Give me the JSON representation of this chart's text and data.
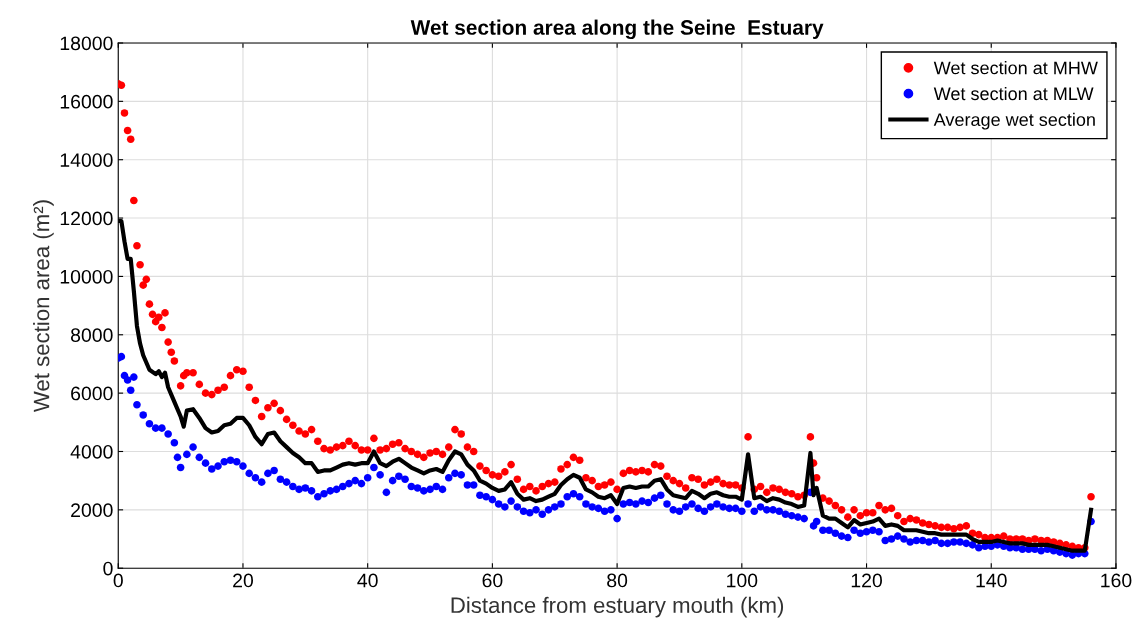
{
  "chart_data": {
    "type": "scatter",
    "title": "Wet section area along the Seine  Estuary",
    "xlabel": "Distance from estuary mouth (km)",
    "ylabel": "Wet section area (m²)",
    "xlim": [
      0,
      160
    ],
    "xticks": [
      0,
      20,
      40,
      60,
      80,
      100,
      120,
      140,
      160
    ],
    "ylim": [
      0,
      18000
    ],
    "yticks": [
      0,
      2000,
      4000,
      6000,
      8000,
      10000,
      12000,
      14000,
      16000,
      18000
    ],
    "grid": true,
    "legend": "top right",
    "series": [
      {
        "name": "Wet section at MHW",
        "marker": "circle",
        "color": "#ff0000",
        "x": [
          0,
          0.5,
          1,
          1.5,
          2,
          2.5,
          3,
          3.5,
          4,
          4.5,
          5,
          5.5,
          6,
          6.5,
          7,
          7.5,
          8,
          8.5,
          9,
          10,
          10.5,
          11,
          12,
          13,
          14,
          15,
          16,
          17,
          18,
          19,
          20,
          21,
          22,
          23,
          24,
          25,
          26,
          27,
          28,
          29,
          30,
          31,
          32,
          33,
          34,
          35,
          36,
          37,
          38,
          39,
          40,
          41,
          42,
          43,
          44,
          45,
          46,
          47,
          48,
          49,
          50,
          51,
          52,
          53,
          54,
          55,
          56,
          57,
          58,
          59,
          60,
          61,
          62,
          63,
          64,
          65,
          66,
          67,
          68,
          69,
          70,
          71,
          72,
          73,
          74,
          75,
          76,
          77,
          78,
          79,
          80,
          81,
          82,
          83,
          84,
          85,
          86,
          87,
          88,
          89,
          90,
          91,
          92,
          93,
          94,
          95,
          96,
          97,
          98,
          99,
          100,
          101,
          102,
          103,
          104,
          105,
          106,
          107,
          108,
          109,
          110,
          111,
          111.5,
          112,
          113,
          114,
          115,
          116,
          117,
          118,
          119,
          120,
          121,
          122,
          123,
          124,
          125,
          126,
          127,
          128,
          129,
          130,
          131,
          132,
          133,
          134,
          135,
          136,
          137,
          138,
          139,
          140,
          141,
          142,
          143,
          144,
          145,
          146,
          147,
          148,
          149,
          150,
          151,
          152,
          153,
          154,
          155,
          156
        ],
        "values": [
          16600,
          16550,
          15600,
          15000,
          14700,
          12600,
          11050,
          10400,
          9700,
          9900,
          9050,
          8700,
          8450,
          8600,
          8250,
          8750,
          7750,
          7400,
          7100,
          6250,
          6600,
          6700,
          6700,
          6300,
          6000,
          5950,
          6100,
          6200,
          6600,
          6800,
          6750,
          6200,
          5750,
          5200,
          5500,
          5650,
          5400,
          5100,
          4900,
          4700,
          4600,
          4750,
          4350,
          4100,
          4050,
          4150,
          4200,
          4350,
          4200,
          4050,
          4050,
          4450,
          4050,
          4100,
          4250,
          4300,
          4100,
          4000,
          3900,
          3800,
          3950,
          4000,
          3900,
          4150,
          4750,
          4600,
          4150,
          4000,
          3500,
          3350,
          3200,
          3150,
          3300,
          3550,
          3050,
          2700,
          2800,
          2650,
          2800,
          2900,
          2950,
          3400,
          3550,
          3800,
          3700,
          3100,
          3000,
          2800,
          2850,
          2950,
          2700,
          3250,
          3350,
          3300,
          3350,
          3300,
          3550,
          3500,
          3150,
          3000,
          2900,
          2750,
          3100,
          3050,
          2850,
          2950,
          3050,
          2900,
          2850,
          2850,
          2750,
          4500,
          2700,
          2800,
          2600,
          2750,
          2700,
          2600,
          2550,
          2450,
          2500,
          4500,
          3600,
          3100,
          2400,
          2300,
          2150,
          2000,
          1750,
          2000,
          1800,
          1900,
          1900,
          2150,
          2000,
          2050,
          1800,
          1600,
          1700,
          1650,
          1550,
          1500,
          1450,
          1400,
          1400,
          1350,
          1400,
          1450,
          1200,
          1150,
          1050,
          1050,
          1050,
          1100,
          1000,
          1000,
          1000,
          950,
          1000,
          950,
          950,
          900,
          850,
          800,
          750,
          700,
          700,
          2450
        ]
      },
      {
        "name": "Wet section at MLW",
        "marker": "circle",
        "color": "#0000ff",
        "x": [
          0,
          0.5,
          1,
          1.5,
          2,
          2.5,
          3,
          4,
          5,
          6,
          7,
          8,
          9,
          9.5,
          10,
          11,
          12,
          13,
          14,
          15,
          16,
          17,
          18,
          19,
          20,
          21,
          22,
          23,
          24,
          25,
          26,
          27,
          28,
          29,
          30,
          31,
          32,
          33,
          34,
          35,
          36,
          37,
          38,
          39,
          40,
          41,
          42,
          43,
          44,
          45,
          46,
          47,
          48,
          49,
          50,
          51,
          52,
          53,
          54,
          55,
          56,
          57,
          58,
          59,
          60,
          61,
          62,
          63,
          64,
          65,
          66,
          67,
          68,
          69,
          70,
          71,
          72,
          73,
          74,
          75,
          76,
          77,
          78,
          79,
          80,
          81,
          82,
          83,
          84,
          85,
          86,
          87,
          88,
          89,
          90,
          91,
          92,
          93,
          94,
          95,
          96,
          97,
          98,
          99,
          100,
          101,
          102,
          103,
          104,
          105,
          106,
          107,
          108,
          109,
          110,
          111,
          111.5,
          112,
          113,
          114,
          115,
          116,
          117,
          118,
          119,
          120,
          121,
          122,
          123,
          124,
          125,
          126,
          127,
          128,
          129,
          130,
          131,
          132,
          133,
          134,
          135,
          136,
          137,
          138,
          139,
          140,
          141,
          142,
          143,
          144,
          145,
          146,
          147,
          148,
          149,
          150,
          151,
          152,
          153,
          154,
          155,
          156
        ],
        "values": [
          7200,
          7250,
          6600,
          6450,
          6100,
          6550,
          5600,
          5250,
          4950,
          4800,
          4800,
          4600,
          4300,
          3800,
          3450,
          3900,
          4150,
          3800,
          3600,
          3400,
          3500,
          3650,
          3700,
          3650,
          3500,
          3250,
          3100,
          2950,
          3250,
          3350,
          3050,
          2950,
          2800,
          2700,
          2750,
          2650,
          2450,
          2550,
          2650,
          2700,
          2800,
          2900,
          3000,
          2900,
          3100,
          3450,
          3200,
          2600,
          3000,
          3150,
          3050,
          2800,
          2750,
          2650,
          2700,
          2800,
          2700,
          3100,
          3250,
          3200,
          2850,
          2850,
          2500,
          2450,
          2350,
          2200,
          2100,
          2300,
          2100,
          1950,
          1900,
          2000,
          1850,
          2000,
          2100,
          2200,
          2450,
          2550,
          2450,
          2200,
          2100,
          2050,
          1950,
          2000,
          1700,
          2200,
          2250,
          2200,
          2300,
          2250,
          2400,
          2500,
          2200,
          2000,
          1950,
          2100,
          2200,
          2050,
          1950,
          2100,
          2200,
          2100,
          2050,
          2050,
          1950,
          2200,
          1950,
          2100,
          2000,
          2000,
          1950,
          1850,
          1800,
          1750,
          1700,
          2600,
          1450,
          1600,
          1300,
          1300,
          1200,
          1100,
          1050,
          1300,
          1200,
          1250,
          1300,
          1250,
          950,
          1000,
          1100,
          1000,
          900,
          950,
          950,
          900,
          950,
          850,
          850,
          900,
          900,
          850,
          800,
          700,
          750,
          750,
          800,
          750,
          700,
          700,
          650,
          650,
          650,
          600,
          650,
          600,
          550,
          500,
          450,
          500,
          500,
          1600
        ]
      },
      {
        "name": "Average wet section",
        "type": "line",
        "color": "#000000",
        "x": [
          0,
          0.5,
          1,
          1.5,
          2,
          2.5,
          3,
          3.5,
          4,
          5,
          6,
          6.5,
          7,
          7.5,
          8,
          9,
          10,
          10.5,
          11,
          12,
          13,
          14,
          15,
          16,
          17,
          18,
          19,
          20,
          21,
          22,
          23,
          24,
          25,
          26,
          27,
          28,
          29,
          30,
          31,
          32,
          33,
          34,
          35,
          36,
          37,
          38,
          39,
          40,
          41,
          42,
          43,
          44,
          45,
          46,
          47,
          48,
          49,
          50,
          51,
          52,
          53,
          54,
          55,
          56,
          57,
          58,
          59,
          60,
          61,
          62,
          63,
          64,
          65,
          66,
          67,
          68,
          69,
          70,
          71,
          72,
          73,
          74,
          75,
          76,
          77,
          78,
          79,
          80,
          81,
          82,
          83,
          84,
          85,
          86,
          87,
          88,
          89,
          90,
          91,
          92,
          93,
          94,
          95,
          96,
          97,
          98,
          99,
          100,
          101,
          102,
          103,
          104,
          105,
          106,
          107,
          108,
          109,
          110,
          111,
          111.5,
          112,
          113,
          114,
          115,
          116,
          117,
          118,
          119,
          120,
          121,
          122,
          123,
          124,
          125,
          126,
          127,
          128,
          129,
          130,
          131,
          132,
          133,
          134,
          135,
          136,
          137,
          138,
          139,
          140,
          141,
          142,
          143,
          144,
          145,
          146,
          147,
          148,
          149,
          150,
          151,
          152,
          153,
          154,
          155,
          156
        ],
        "values": [
          11900,
          11900,
          11200,
          10600,
          10600,
          9500,
          8300,
          7700,
          7300,
          6800,
          6650,
          6750,
          6550,
          6700,
          6200,
          5700,
          5200,
          4850,
          5400,
          5450,
          5150,
          4800,
          4650,
          4700,
          4900,
          4950,
          5150,
          5150,
          4900,
          4500,
          4250,
          4600,
          4650,
          4350,
          4150,
          3950,
          3800,
          3600,
          3600,
          3300,
          3350,
          3350,
          3450,
          3550,
          3600,
          3550,
          3600,
          3600,
          4000,
          3600,
          3500,
          3650,
          3750,
          3600,
          3450,
          3350,
          3250,
          3350,
          3400,
          3300,
          3700,
          4000,
          3900,
          3550,
          3350,
          3000,
          2900,
          2750,
          2650,
          2700,
          2950,
          2550,
          2350,
          2400,
          2300,
          2350,
          2450,
          2550,
          2850,
          3050,
          3200,
          3100,
          2700,
          2600,
          2450,
          2400,
          2500,
          2200,
          2750,
          2800,
          2750,
          2800,
          2800,
          3000,
          3050,
          2700,
          2500,
          2450,
          2400,
          2650,
          2550,
          2400,
          2550,
          2600,
          2500,
          2450,
          2450,
          2350,
          3900,
          2400,
          2450,
          2300,
          2400,
          2350,
          2250,
          2200,
          2100,
          2150,
          3950,
          2500,
          2750,
          1800,
          1700,
          1700,
          1550,
          1400,
          1650,
          1500,
          1550,
          1600,
          1700,
          1450,
          1500,
          1450,
          1300,
          1300,
          1300,
          1250,
          1200,
          1200,
          1150,
          1150,
          1150,
          1150,
          1150,
          1000,
          900,
          900,
          900,
          950,
          900,
          850,
          850,
          850,
          800,
          800,
          800,
          800,
          750,
          700,
          650,
          600,
          600,
          600,
          2000
        ]
      }
    ]
  }
}
